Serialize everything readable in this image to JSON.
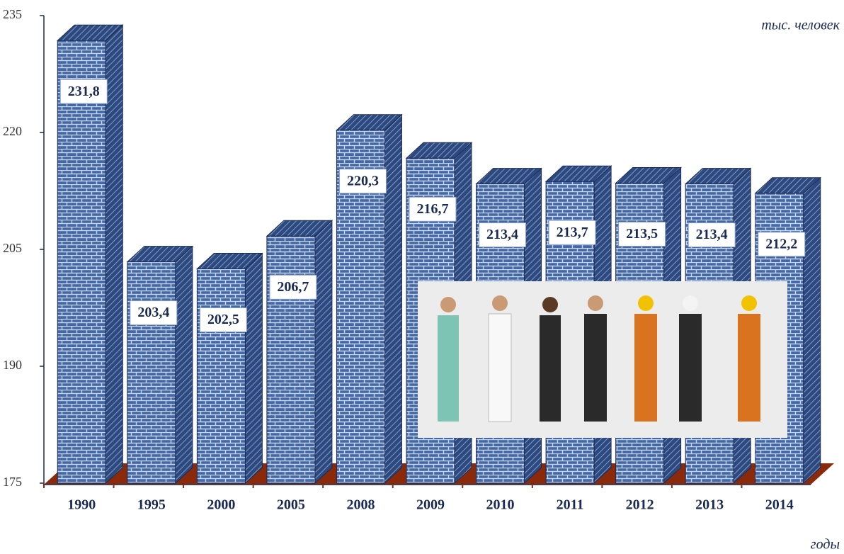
{
  "chart_data": {
    "type": "bar",
    "y_axis_label": "тыс. человек",
    "x_axis_label": "годы",
    "categories": [
      "1990",
      "1995",
      "2000",
      "2005",
      "2008",
      "2009",
      "2010",
      "2011",
      "2012",
      "2013",
      "2014"
    ],
    "values": [
      231.8,
      203.4,
      202.5,
      206.7,
      220.3,
      216.7,
      213.4,
      213.7,
      213.5,
      213.4,
      212.2
    ],
    "value_labels": [
      "231,8",
      "203,4",
      "202,5",
      "206,7",
      "220,3",
      "216,7",
      "213,4",
      "213,7",
      "213,5",
      "213,4",
      "212,2"
    ],
    "color": "#3f65a3",
    "ylim": [
      175,
      235
    ],
    "yticks": [
      175,
      190,
      205,
      220,
      235
    ]
  }
}
